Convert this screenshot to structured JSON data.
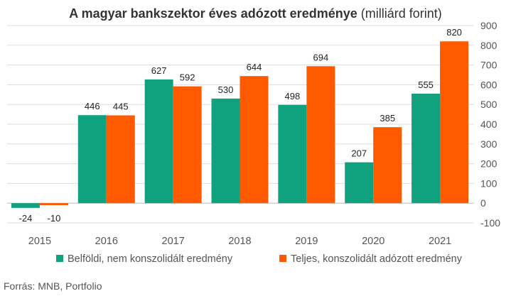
{
  "title_bold": "A magyar bankszektor éves adózott eredménye",
  "title_unit": "(milliárd forint)",
  "source": "Forrás: MNB, Portfolio",
  "colors": {
    "series1": "#10a27f",
    "series2": "#ff5a00",
    "grid": "#dddddd",
    "axis": "#bbbbbb"
  },
  "chart_data": {
    "type": "bar",
    "title": "A magyar bankszektor éves adózott eredménye (milliárd forint)",
    "categories": [
      "2015",
      "2016",
      "2017",
      "2018",
      "2019",
      "2020",
      "2021"
    ],
    "series": [
      {
        "name": "Belföldi, nem konszolidált eredmény",
        "values": [
          -24,
          446,
          627,
          530,
          498,
          207,
          555
        ]
      },
      {
        "name": "Teljes, konszolidált adózott eredmény",
        "values": [
          -10,
          445,
          592,
          644,
          694,
          385,
          820
        ]
      }
    ],
    "ylim": [
      -100,
      900
    ],
    "yticks": [
      -100,
      0,
      100,
      200,
      300,
      400,
      500,
      600,
      700,
      800,
      900
    ],
    "y_axis_side": "right",
    "grid": true,
    "legend_position": "bottom",
    "data_labels": true
  }
}
